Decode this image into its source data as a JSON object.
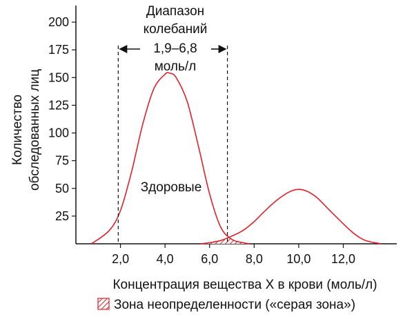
{
  "chart_data": {
    "type": "line",
    "title": "",
    "xlabel": "Концентрация вещества X в крови (моль/л)",
    "ylabel_lines": [
      "Количество",
      "обследованных лиц"
    ],
    "xlim": [
      0,
      14.4
    ],
    "ylim": [
      0,
      215
    ],
    "xticks": [
      2,
      4,
      6,
      8,
      10,
      12
    ],
    "xtick_labels": [
      "2,0",
      "4,0",
      "6,0",
      "8,0",
      "10,0",
      "12,0"
    ],
    "yticks": [
      25,
      50,
      75,
      100,
      125,
      150,
      175,
      200
    ],
    "ytick_labels": [
      "25",
      "50",
      "75",
      "100",
      "125",
      "150",
      "175",
      "200"
    ],
    "series": [
      {
        "name": "Здоровые",
        "color": "#e0202a",
        "x": [
          0.7,
          1.5,
          2.0,
          2.5,
          3.0,
          3.5,
          4.0,
          4.2,
          4.5,
          5.0,
          5.5,
          6.0,
          6.5,
          7.0,
          7.5,
          7.8
        ],
        "y": [
          0,
          12,
          30,
          65,
          108,
          140,
          153,
          154,
          150,
          128,
          88,
          45,
          15,
          4,
          1,
          0
        ]
      },
      {
        "name": "",
        "color": "#e0202a",
        "x": [
          5.6,
          6.0,
          6.5,
          7.0,
          7.5,
          8.0,
          8.5,
          9.0,
          9.5,
          9.9,
          10.3,
          10.8,
          11.3,
          12.0,
          12.5,
          13.0,
          13.7
        ],
        "y": [
          0,
          1,
          3,
          7,
          12,
          20,
          30,
          39,
          46,
          49,
          48,
          42,
          32,
          18,
          9,
          3,
          0
        ]
      }
    ],
    "range_annotation": {
      "lines": [
        "Диапазон",
        "колебаний",
        "1,9–6,8",
        "моль/л"
      ],
      "from": 1.9,
      "to": 6.8
    },
    "legend": {
      "label": "Зона неопределенности («серая зона»)",
      "placement": "bottom-right"
    }
  }
}
